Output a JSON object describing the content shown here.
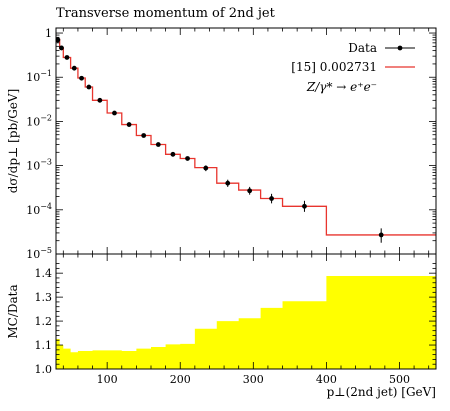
{
  "chart_data": [
    {
      "type": "line",
      "title": "Transverse momentum of 2nd jet",
      "ylabel": "dσ/dp⊥ [pb/GeV]",
      "yscale": "log",
      "ylim": [
        1e-05,
        1.3
      ],
      "xlim": [
        30,
        550
      ],
      "ytick_labels": [
        {
          "value": 1,
          "mantissa": "1",
          "exp": ""
        },
        {
          "value": 0.1,
          "mantissa": "10",
          "exp": "−1"
        },
        {
          "value": 0.01,
          "mantissa": "10",
          "exp": "−2"
        },
        {
          "value": 0.001,
          "mantissa": "10",
          "exp": "−3"
        },
        {
          "value": 0.0001,
          "mantissa": "10",
          "exp": "−4"
        },
        {
          "value": 1e-05,
          "mantissa": "10",
          "exp": "−5"
        }
      ],
      "legend": {
        "position": "top-right",
        "entries": [
          {
            "label": "Data",
            "color": "#000000",
            "kind": "points"
          },
          {
            "label": "[15] 0.002731",
            "color": "#e8352e",
            "kind": "line"
          },
          {
            "label": "Z/γ* → e⁺e⁻",
            "kind": "text"
          }
        ]
      },
      "series": [
        {
          "name": "Data",
          "kind": "points",
          "color": "#000000",
          "points": [
            {
              "x": 32.5,
              "y": 0.7,
              "err_lo": 0.6,
              "err_hi": 0.8
            },
            {
              "x": 37.5,
              "y": 0.46,
              "err_lo": 0.41,
              "err_hi": 0.51
            },
            {
              "x": 45,
              "y": 0.28,
              "err_lo": 0.26,
              "err_hi": 0.3
            },
            {
              "x": 55,
              "y": 0.16,
              "err_lo": 0.15,
              "err_hi": 0.17
            },
            {
              "x": 65,
              "y": 0.095,
              "err_lo": 0.088,
              "err_hi": 0.102
            },
            {
              "x": 75,
              "y": 0.06,
              "err_lo": 0.056,
              "err_hi": 0.064
            },
            {
              "x": 90,
              "y": 0.03,
              "err_lo": 0.028,
              "err_hi": 0.032
            },
            {
              "x": 110,
              "y": 0.0155,
              "err_lo": 0.0145,
              "err_hi": 0.0165
            },
            {
              "x": 130,
              "y": 0.0085,
              "err_lo": 0.0079,
              "err_hi": 0.0091
            },
            {
              "x": 150,
              "y": 0.0048,
              "err_lo": 0.0044,
              "err_hi": 0.0052
            },
            {
              "x": 170,
              "y": 0.003,
              "err_lo": 0.0027,
              "err_hi": 0.0033
            },
            {
              "x": 190,
              "y": 0.0018,
              "err_lo": 0.0016,
              "err_hi": 0.002
            },
            {
              "x": 210,
              "y": 0.00145,
              "err_lo": 0.0013,
              "err_hi": 0.0016
            },
            {
              "x": 235,
              "y": 0.00088,
              "err_lo": 0.00075,
              "err_hi": 0.00101
            },
            {
              "x": 265,
              "y": 0.0004,
              "err_lo": 0.00033,
              "err_hi": 0.00048
            },
            {
              "x": 295,
              "y": 0.00027,
              "err_lo": 0.00022,
              "err_hi": 0.00033
            },
            {
              "x": 325,
              "y": 0.00018,
              "err_lo": 0.00014,
              "err_hi": 0.00023
            },
            {
              "x": 370,
              "y": 0.00012,
              "err_lo": 9e-05,
              "err_hi": 0.00016
            },
            {
              "x": 475,
              "y": 2.7e-05,
              "err_lo": 1.8e-05,
              "err_hi": 3.8e-05
            }
          ]
        },
        {
          "name": "[15] 0.002731",
          "kind": "histogram",
          "color": "#e8352e",
          "edges": [
            30,
            35,
            40,
            50,
            60,
            70,
            80,
            100,
            120,
            140,
            160,
            180,
            200,
            220,
            250,
            280,
            310,
            340,
            400,
            550
          ],
          "values": [
            0.72,
            0.46,
            0.28,
            0.16,
            0.096,
            0.06,
            0.03,
            0.0155,
            0.0085,
            0.0048,
            0.003,
            0.0018,
            0.00145,
            0.0009,
            0.0004,
            0.00028,
            0.00018,
            0.00012,
            2.7e-05
          ]
        }
      ]
    },
    {
      "type": "area",
      "ylabel": "MC/Data",
      "xlabel": "p⊥(2nd jet) [GeV]",
      "ylim": [
        1.0,
        1.48
      ],
      "xlim": [
        30,
        550
      ],
      "yticks": [
        1.0,
        1.1,
        1.2,
        1.3,
        1.4
      ],
      "ytick_labels": [
        "1.0",
        "1.1",
        "1.2",
        "1.3",
        "1.4"
      ],
      "xticks": [
        100,
        200,
        300,
        400,
        500
      ],
      "xtick_labels": [
        "100",
        "200",
        "300",
        "400",
        "500"
      ],
      "fill_color": "#ffff00",
      "edges": [
        30,
        35,
        40,
        50,
        60,
        70,
        80,
        100,
        120,
        140,
        160,
        180,
        200,
        220,
        250,
        280,
        310,
        340,
        400,
        550
      ],
      "values": [
        1.125,
        1.1,
        1.085,
        1.07,
        1.075,
        1.075,
        1.078,
        1.078,
        1.075,
        1.085,
        1.092,
        1.103,
        1.105,
        1.168,
        1.2,
        1.212,
        1.255,
        1.283,
        1.388
      ]
    }
  ]
}
